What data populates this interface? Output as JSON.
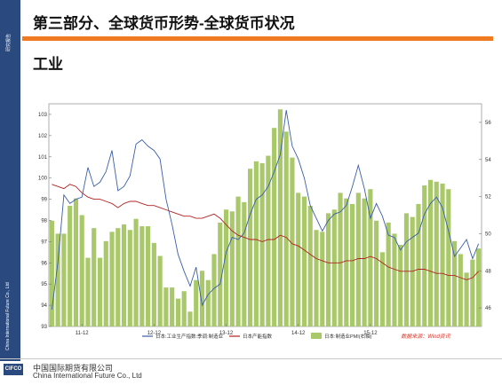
{
  "sidebar": {
    "top_text": "研究报告",
    "bottom_text": "China International Future Co., Ltd"
  },
  "header": {
    "title": "第三部分、全球货币形势-全球货币状况",
    "subtitle": "工业"
  },
  "footer": {
    "logo_text": "CIFCO",
    "company_cn": "中国国际期货有限公司",
    "company_en": "China International Future Co., Ltd"
  },
  "colors": {
    "accent": "#f07a22",
    "sidebar": "#2a4a7f"
  },
  "chart_data": {
    "type": "bar+line",
    "left_axis": {
      "min": 93,
      "max": 103.5,
      "ticks": [
        93,
        94,
        95,
        96,
        97,
        98,
        99,
        100,
        101,
        102,
        103
      ]
    },
    "right_axis": {
      "min": 45,
      "max": 57,
      "ticks": [
        46,
        48,
        50,
        52,
        54,
        56
      ]
    },
    "x_ticks": [
      "11-12",
      "12-12",
      "13-12",
      "14-12",
      "15-12"
    ],
    "legend": [
      {
        "label": "日本:工业生产指数:季调:制造业",
        "kind": "line",
        "color": "#3b5ea8"
      },
      {
        "label": "日本产能指数",
        "kind": "line",
        "color": "#b22222"
      },
      {
        "label": "日本:制造业PMI(右轴)",
        "kind": "bar",
        "color": "#a9c86a"
      }
    ],
    "source_note": "数据来源：Wind资讯",
    "bar_values": [
      50.7,
      50.0,
      50.0,
      51.5,
      51.9,
      51.0,
      48.7,
      50.3,
      48.7,
      49.6,
      50.1,
      50.3,
      50.5,
      50.2,
      50.8,
      50.4,
      50.4,
      49.5,
      48.8,
      47.1,
      47.1,
      46.5,
      46.9,
      45.8,
      47.5,
      48.0,
      47.5,
      48.9,
      50.6,
      51.3,
      51.2,
      52.0,
      51.7,
      53.5,
      53.9,
      53.8,
      54.2,
      55.7,
      56.7,
      55.5,
      54.1,
      52.2,
      52.0,
      51.5,
      50.2,
      50.1,
      51.1,
      51.3,
      52.2,
      51.9,
      51.6,
      52.2,
      51.9,
      52.4,
      50.7,
      49.0,
      50.6,
      50.0,
      49.4,
      51.1,
      50.9,
      51.6,
      52.6,
      52.9,
      52.8,
      52.7,
      52.4,
      49.6,
      48.9,
      47.9,
      48.6,
      49.2
    ],
    "series_ip": [
      93.8,
      96.0,
      99.2,
      98.8,
      99.0,
      99.1,
      100.5,
      99.6,
      99.8,
      100.3,
      101.3,
      99.4,
      99.6,
      100.1,
      101.6,
      101.8,
      101.5,
      101.3,
      100.9,
      99.0,
      97.8,
      96.4,
      95.6,
      94.9,
      95.8,
      94.0,
      94.5,
      94.8,
      95.0,
      96.5,
      97.2,
      97.1,
      97.4,
      98.3,
      99.0,
      99.2,
      99.6,
      100.3,
      101.1,
      103.2,
      101.5,
      100.9,
      100.0,
      98.7,
      98.1,
      97.5,
      98.0,
      98.3,
      98.4,
      98.7,
      99.6,
      100.6,
      99.5,
      98.1,
      98.8,
      98.2,
      97.3,
      97.2,
      96.6,
      97.0,
      97.2,
      97.4,
      98.3,
      98.8,
      99.1,
      98.6,
      97.5,
      96.3,
      96.7,
      97.1,
      96.2,
      96.9
    ],
    "series_cap": [
      99.7,
      99.6,
      99.5,
      99.7,
      99.6,
      99.3,
      99.1,
      99.0,
      99.0,
      98.9,
      98.8,
      98.6,
      98.8,
      98.9,
      98.9,
      98.8,
      98.7,
      98.7,
      98.6,
      98.5,
      98.4,
      98.3,
      98.2,
      98.2,
      98.1,
      98.1,
      98.2,
      98.3,
      98.1,
      97.8,
      97.5,
      97.3,
      97.2,
      97.1,
      97.1,
      97.0,
      97.1,
      97.1,
      97.3,
      97.2,
      96.9,
      96.8,
      96.6,
      96.4,
      96.2,
      96.1,
      96.0,
      96.0,
      96.0,
      96.1,
      96.1,
      96.2,
      96.2,
      96.3,
      96.2,
      96.0,
      95.8,
      95.7,
      95.6,
      95.6,
      95.6,
      95.7,
      95.7,
      95.6,
      95.5,
      95.5,
      95.4,
      95.4,
      95.3,
      95.2,
      95.3,
      95.6
    ]
  }
}
